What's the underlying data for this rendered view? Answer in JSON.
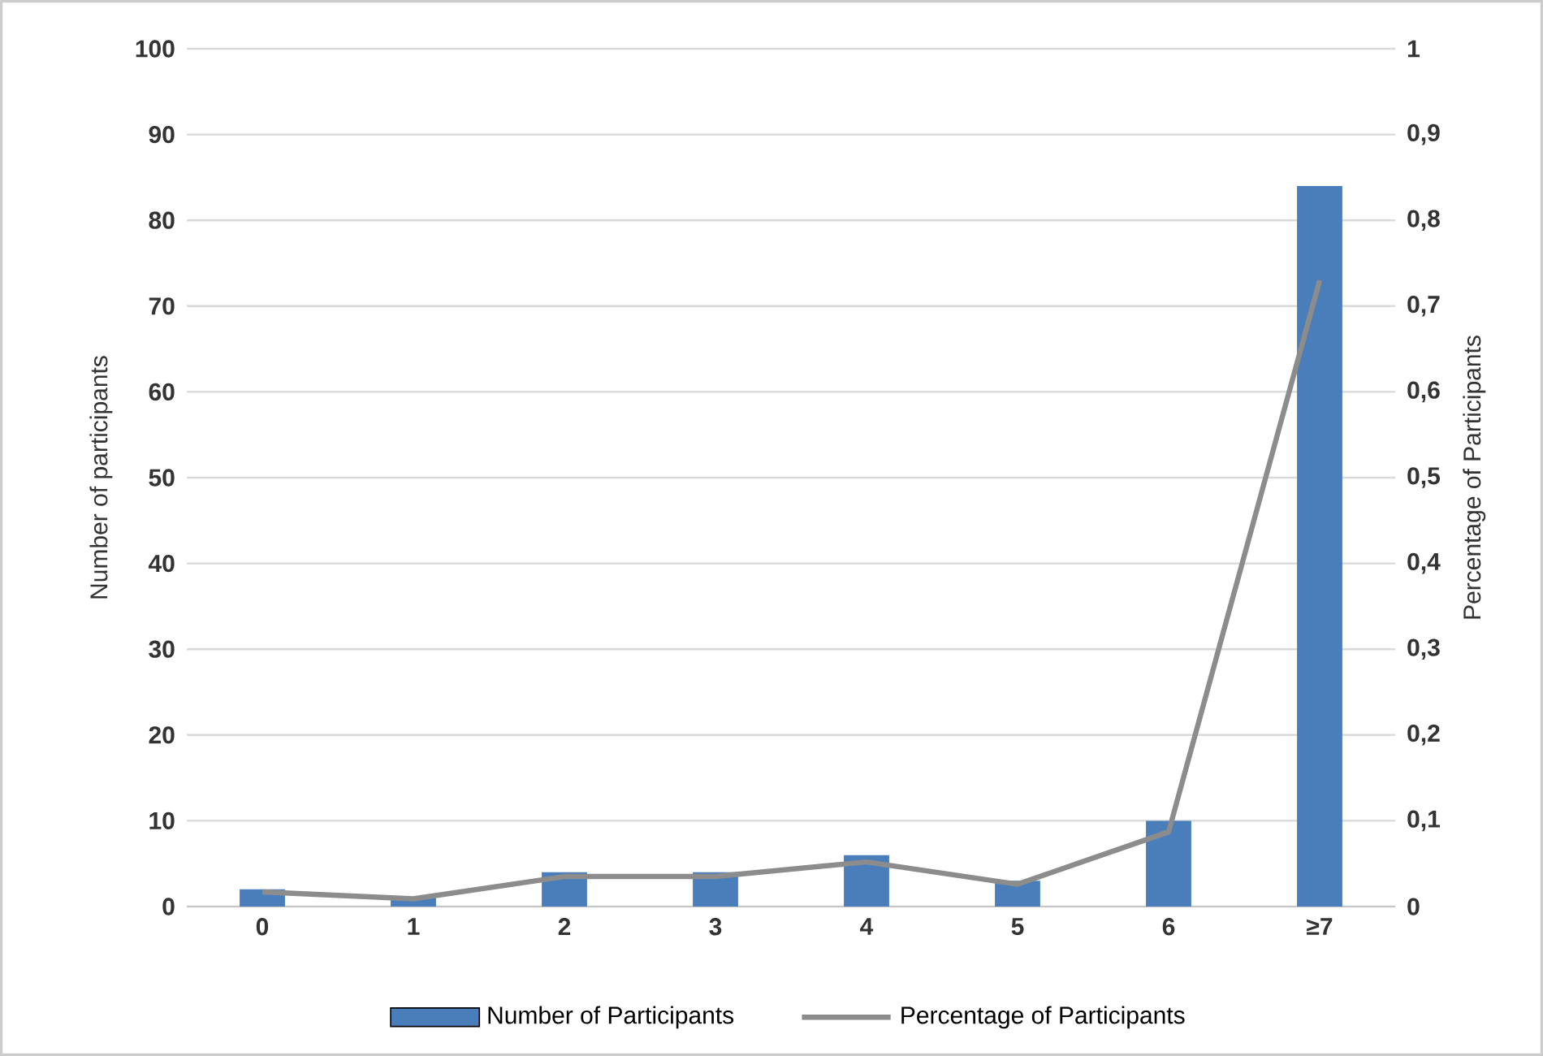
{
  "chart_data": {
    "type": "bar",
    "categories": [
      "0",
      "1",
      "2",
      "3",
      "4",
      "5",
      "6",
      "≥7"
    ],
    "ylabel": "Number of participants",
    "y2label": "Percentage of Participants",
    "series": [
      {
        "name": "Number of Participants",
        "color": "#4a7ebb",
        "values": [
          2,
          1,
          4,
          4,
          6,
          3,
          10,
          84
        ]
      },
      {
        "name": "Percentage of Participants",
        "type": "line",
        "axis": "y2",
        "color": "#8c8c8c",
        "values": [
          0.017,
          0.009,
          0.035,
          0.035,
          0.052,
          0.026,
          0.087,
          0.73
        ]
      }
    ],
    "ylim": [
      0,
      100
    ],
    "yticks": [
      0,
      10,
      20,
      30,
      40,
      50,
      60,
      70,
      80,
      90,
      100
    ],
    "y2lim": [
      0,
      1
    ],
    "y2ticks": [
      0,
      {
        "value": 0.1,
        "label": "0,1"
      },
      {
        "value": 0.2,
        "label": "0,2"
      },
      {
        "value": 0.3,
        "label": "0,3"
      },
      {
        "value": 0.4,
        "label": "0,4"
      },
      {
        "value": 0.5,
        "label": "0,5"
      },
      {
        "value": 0.6,
        "label": "0,6"
      },
      {
        "value": 0.7,
        "label": "0,7"
      },
      {
        "value": 0.8,
        "label": "0,8"
      },
      {
        "value": 0.9,
        "label": "0,9"
      },
      1
    ],
    "grid": "y",
    "legend": "bottom",
    "marker": "none",
    "line_style": "solid"
  }
}
